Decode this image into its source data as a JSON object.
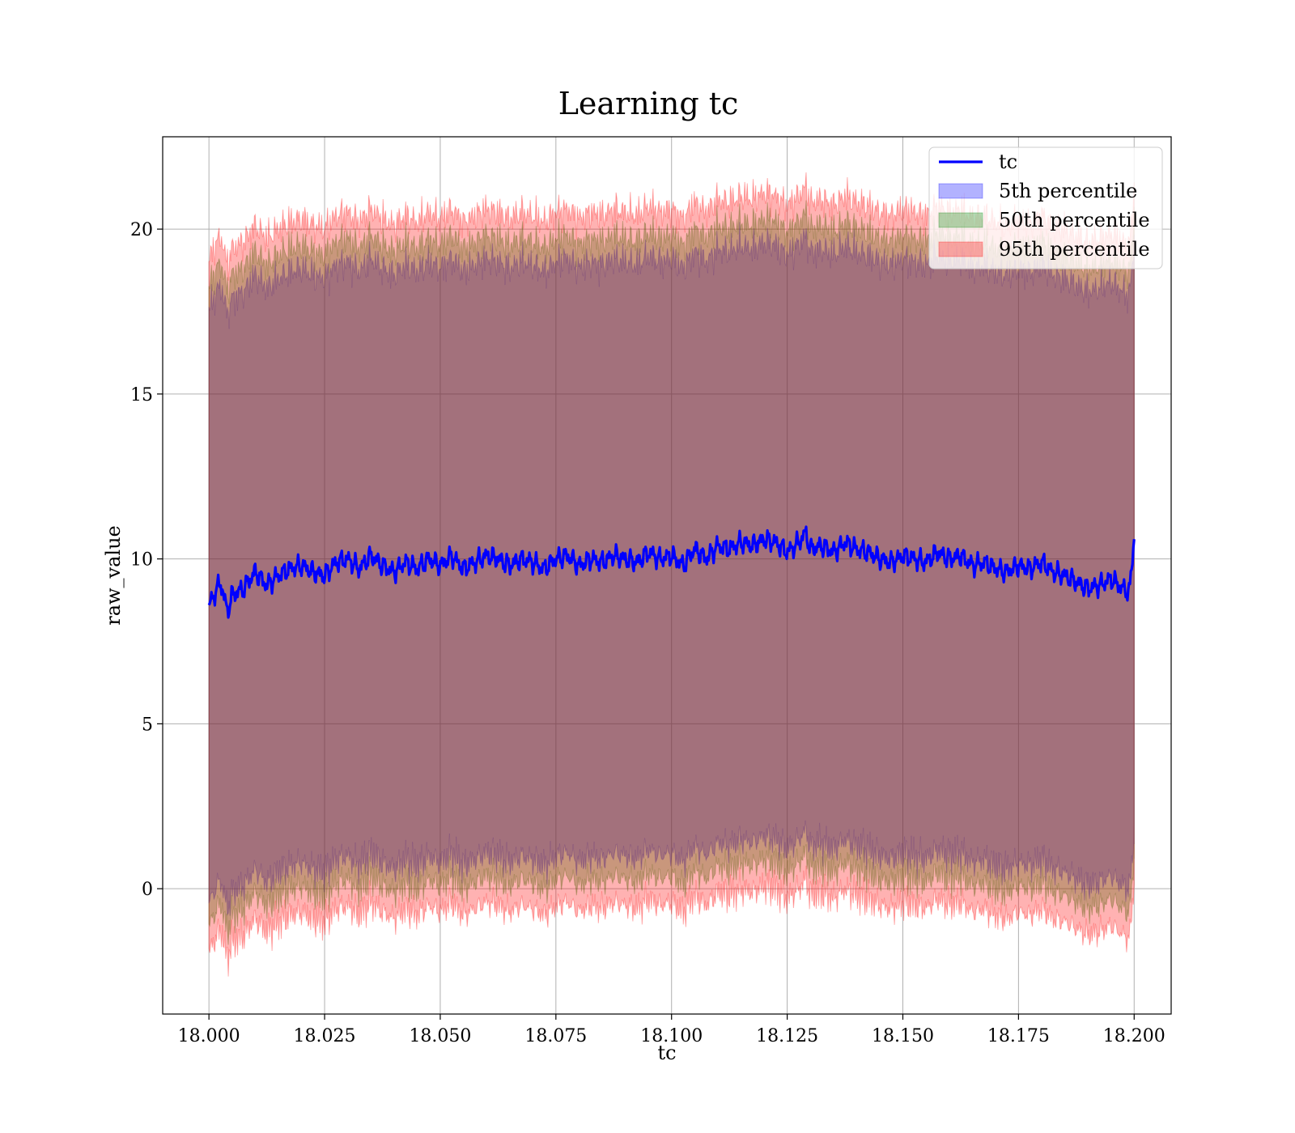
{
  "chart_data": {
    "type": "area",
    "title": "Learning tc",
    "xlabel": "tc",
    "ylabel": "raw_value",
    "xlim": [
      17.99,
      18.208
    ],
    "ylim": [
      -3.8,
      22.8
    ],
    "x_range": [
      18.0,
      18.2
    ],
    "xticks": [
      18.0,
      18.025,
      18.05,
      18.075,
      18.1,
      18.125,
      18.15,
      18.175,
      18.2
    ],
    "xtick_labels": [
      "18.000",
      "18.025",
      "18.050",
      "18.075",
      "18.100",
      "18.125",
      "18.150",
      "18.175",
      "18.200"
    ],
    "yticks": [
      0,
      5,
      10,
      15,
      20
    ],
    "ytick_labels": [
      "0",
      "5",
      "10",
      "15",
      "20"
    ],
    "grid": true,
    "legend_position": "top-right",
    "legend": [
      {
        "label": "tc",
        "kind": "line",
        "color": "#0000ff"
      },
      {
        "label": "5th percentile",
        "kind": "patch",
        "color": "#0000ff"
      },
      {
        "label": "50th percentile",
        "kind": "patch",
        "color": "#008000"
      },
      {
        "label": "95th percentile",
        "kind": "patch",
        "color": "#ff0000"
      }
    ],
    "series": [
      {
        "name": "tc",
        "kind": "line",
        "color": "#0000ff",
        "x": [
          18.0,
          18.0025,
          18.004,
          18.005,
          18.0075,
          18.01,
          18.0125,
          18.015,
          18.0175,
          18.02,
          18.0225,
          18.025,
          18.0275,
          18.03,
          18.0325,
          18.035,
          18.0375,
          18.04,
          18.0425,
          18.045,
          18.0475,
          18.05,
          18.0525,
          18.055,
          18.0575,
          18.06,
          18.0625,
          18.065,
          18.0675,
          18.07,
          18.0725,
          18.075,
          18.0775,
          18.08,
          18.0825,
          18.085,
          18.0875,
          18.09,
          18.0925,
          18.095,
          18.0975,
          18.1,
          18.1025,
          18.105,
          18.1075,
          18.11,
          18.1125,
          18.115,
          18.1175,
          18.12,
          18.1225,
          18.125,
          18.1275,
          18.129,
          18.13,
          18.1325,
          18.135,
          18.1375,
          18.14,
          18.1425,
          18.145,
          18.1475,
          18.15,
          18.1525,
          18.155,
          18.1575,
          18.16,
          18.1625,
          18.165,
          18.1675,
          18.17,
          18.1725,
          18.175,
          18.1775,
          18.18,
          18.1825,
          18.185,
          18.1875,
          18.19,
          18.1925,
          18.195,
          18.1975,
          18.199,
          18.2
        ],
        "y": [
          8.6,
          9.3,
          8.4,
          8.9,
          9.1,
          9.6,
          9.2,
          9.5,
          9.7,
          9.8,
          9.6,
          9.5,
          9.9,
          10.0,
          9.7,
          10.1,
          9.8,
          9.6,
          9.9,
          9.7,
          10.0,
          9.8,
          10.1,
          9.7,
          9.9,
          10.1,
          10.0,
          9.8,
          10.0,
          9.9,
          9.7,
          10.0,
          10.1,
          9.8,
          10.0,
          9.9,
          10.1,
          10.0,
          9.9,
          10.2,
          10.0,
          10.1,
          9.8,
          10.3,
          10.0,
          10.4,
          10.3,
          10.5,
          10.4,
          10.6,
          10.5,
          10.2,
          10.5,
          10.8,
          10.3,
          10.4,
          10.2,
          10.5,
          10.3,
          10.2,
          10.0,
          9.9,
          10.1,
          10.0,
          9.9,
          10.2,
          10.0,
          10.1,
          9.8,
          9.9,
          9.7,
          9.6,
          9.8,
          9.7,
          9.9,
          9.6,
          9.5,
          9.3,
          9.1,
          9.2,
          9.4,
          9.1,
          9.0,
          10.6
        ]
      },
      {
        "name": "5th percentile",
        "kind": "band",
        "color": "#0000ff",
        "opacity": 0.3,
        "y_offsets": [
          -9.0,
          9.0
        ]
      },
      {
        "name": "50th percentile",
        "kind": "band",
        "color": "#008000",
        "opacity": 0.3,
        "y_offsets": [
          -9.7,
          9.7
        ]
      },
      {
        "name": "95th percentile",
        "kind": "band",
        "color": "#ff0000",
        "opacity": 0.3,
        "y_offsets": [
          -10.5,
          10.5
        ]
      }
    ]
  }
}
